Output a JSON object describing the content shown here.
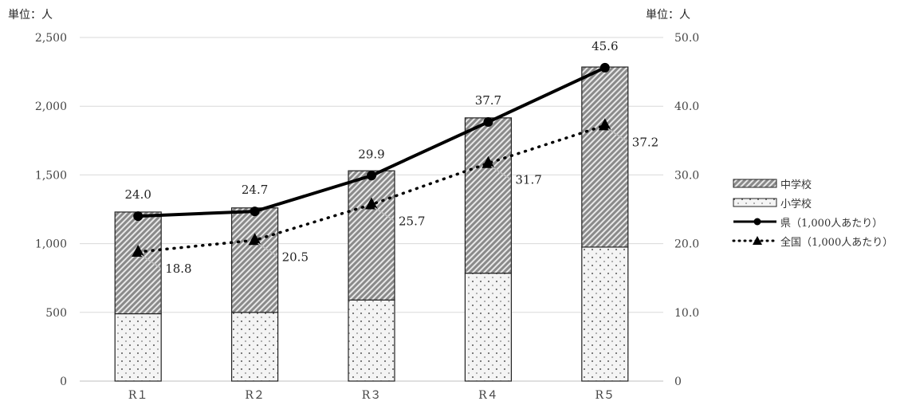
{
  "chart_data": {
    "type": "bar",
    "categories": [
      "R１",
      "R２",
      "R３",
      "R４",
      "R５"
    ],
    "units": {
      "left": "単位：人",
      "right": "単位：人"
    },
    "y_left": {
      "lim": [
        0,
        2500
      ],
      "ticks": [
        "0",
        "500",
        "1,000",
        "1,500",
        "2,000",
        "2,500"
      ],
      "values": [
        0,
        500,
        1000,
        1500,
        2000,
        2500
      ]
    },
    "y_right": {
      "lim": [
        0,
        50
      ],
      "ticks": [
        "0",
        "10.0",
        "20.0",
        "30.0",
        "40.0",
        "50.0"
      ],
      "values": [
        0,
        10,
        20,
        30,
        40,
        50
      ]
    },
    "bars": [
      {
        "name": "中学校",
        "values": [
          740,
          760,
          940,
          1130,
          1310
        ]
      },
      {
        "name": "小学校",
        "values": [
          490,
          500,
          590,
          785,
          975
        ]
      }
    ],
    "lines": [
      {
        "name": "県（1,000人あたり）",
        "values": [
          24.0,
          24.7,
          29.9,
          37.7,
          45.6
        ],
        "labels": [
          "24.0",
          "24.7",
          "29.9",
          "37.7",
          "45.6"
        ],
        "style": "solid",
        "marker": "circle"
      },
      {
        "name": "全国（1,000人あたり）",
        "values": [
          18.8,
          20.5,
          25.7,
          31.7,
          37.2
        ],
        "labels": [
          "18.8",
          "20.5",
          "25.7",
          "31.7",
          "37.2"
        ],
        "style": "dotted",
        "marker": "triangle"
      }
    ],
    "grid": true,
    "legend_position": "right",
    "colors": {
      "axis": "#bfbfbf",
      "grid": "#d9d9d9",
      "bar_border": "#222222",
      "line": "#000000"
    }
  }
}
